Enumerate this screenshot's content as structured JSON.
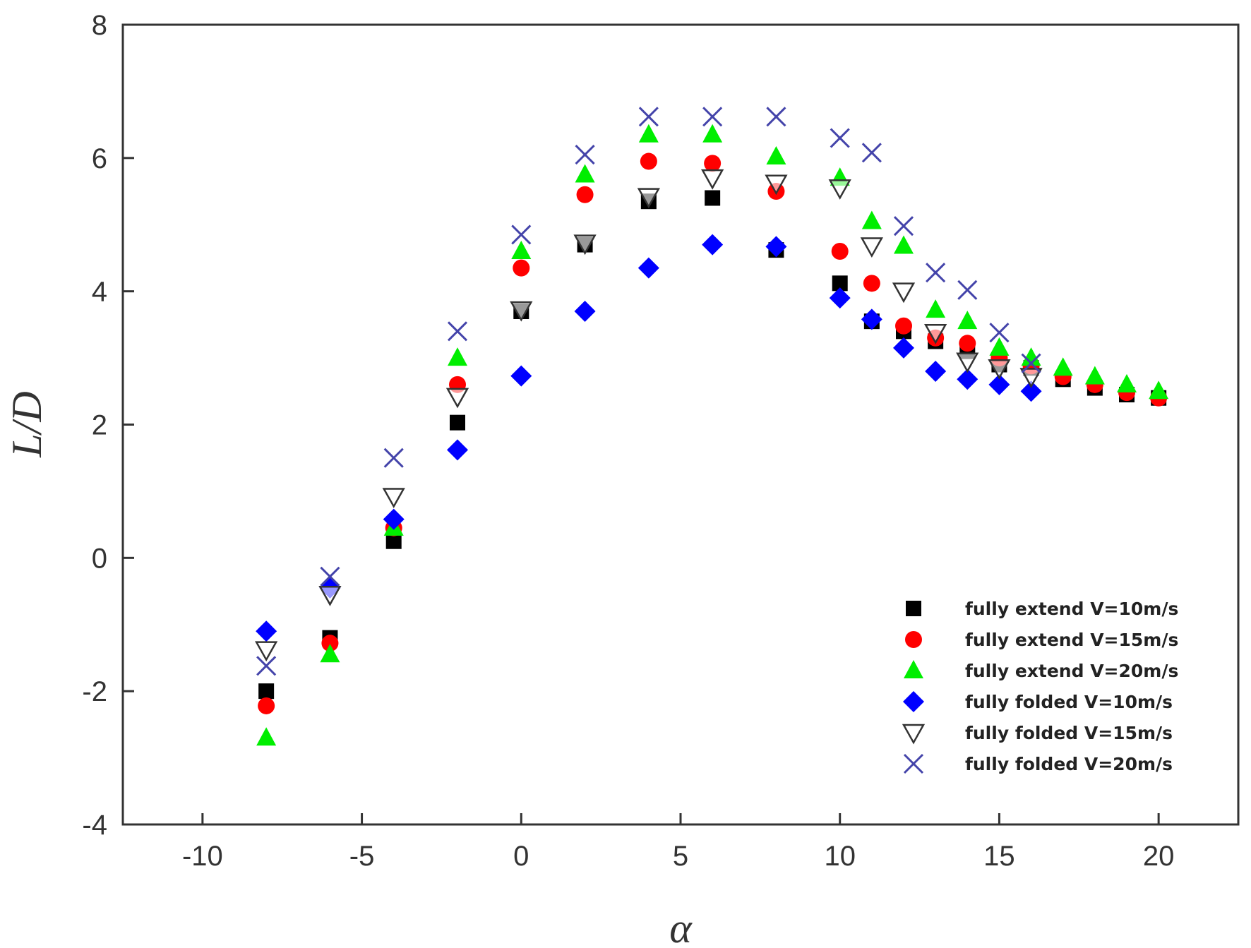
{
  "chart_data": {
    "type": "scatter",
    "title": "",
    "xlabel": "α",
    "ylabel": "L/D",
    "xlim": [
      -12.5,
      22.5
    ],
    "ylim": [
      -4,
      8
    ],
    "xticks": [
      -10,
      -5,
      0,
      5,
      10,
      15,
      20
    ],
    "yticks": [
      -4,
      -2,
      0,
      2,
      4,
      6,
      8
    ],
    "grid": false,
    "legend_position": "bottom-right",
    "series": [
      {
        "name": "fully extend V=10m/s",
        "marker": "square",
        "color": "#000000",
        "points": [
          [
            -8,
            -2.0
          ],
          [
            -6,
            -1.2
          ],
          [
            -4,
            0.25
          ],
          [
            -2,
            2.03
          ],
          [
            0,
            3.7
          ],
          [
            2,
            4.7
          ],
          [
            4,
            5.35
          ],
          [
            6,
            5.4
          ],
          [
            8,
            4.62
          ],
          [
            10,
            4.12
          ],
          [
            11,
            3.55
          ],
          [
            12,
            3.4
          ],
          [
            13,
            3.25
          ],
          [
            14,
            3.1
          ],
          [
            15,
            2.9
          ],
          [
            16,
            2.85
          ],
          [
            17,
            2.68
          ],
          [
            18,
            2.55
          ],
          [
            19,
            2.45
          ],
          [
            20,
            2.4
          ]
        ]
      },
      {
        "name": "fully extend V=15m/s",
        "marker": "circle",
        "color": "#ff0000",
        "points": [
          [
            -8,
            -2.22
          ],
          [
            -6,
            -1.28
          ],
          [
            -4,
            0.45
          ],
          [
            -2,
            2.6
          ],
          [
            0,
            4.35
          ],
          [
            2,
            5.45
          ],
          [
            4,
            5.95
          ],
          [
            6,
            5.92
          ],
          [
            8,
            5.5
          ],
          [
            10,
            4.6
          ],
          [
            11,
            4.12
          ],
          [
            12,
            3.48
          ],
          [
            13,
            3.3
          ],
          [
            14,
            3.22
          ],
          [
            15,
            3.0
          ],
          [
            16,
            2.88
          ],
          [
            17,
            2.72
          ],
          [
            18,
            2.6
          ],
          [
            19,
            2.48
          ],
          [
            20,
            2.4
          ]
        ]
      },
      {
        "name": "fully extend V=20m/s",
        "marker": "triangle-up",
        "color": "#00ee00",
        "points": [
          [
            -8,
            -2.7
          ],
          [
            -6,
            -1.45
          ],
          [
            -4,
            0.45
          ],
          [
            -2,
            3.0
          ],
          [
            0,
            4.6
          ],
          [
            2,
            5.75
          ],
          [
            4,
            6.35
          ],
          [
            6,
            6.35
          ],
          [
            8,
            6.02
          ],
          [
            10,
            5.7
          ],
          [
            11,
            5.05
          ],
          [
            12,
            4.68
          ],
          [
            13,
            3.72
          ],
          [
            14,
            3.55
          ],
          [
            15,
            3.15
          ],
          [
            16,
            3.0
          ],
          [
            17,
            2.85
          ],
          [
            18,
            2.72
          ],
          [
            19,
            2.6
          ],
          [
            20,
            2.5
          ]
        ]
      },
      {
        "name": "fully folded V=10m/s",
        "marker": "diamond",
        "color": "#0000ff",
        "points": [
          [
            -8,
            -1.1
          ],
          [
            -6,
            -0.45
          ],
          [
            -4,
            0.58
          ],
          [
            -2,
            1.62
          ],
          [
            0,
            2.73
          ],
          [
            2,
            3.7
          ],
          [
            4,
            4.35
          ],
          [
            6,
            4.7
          ],
          [
            8,
            4.67
          ],
          [
            10,
            3.9
          ],
          [
            11,
            3.58
          ],
          [
            12,
            3.15
          ],
          [
            13,
            2.8
          ],
          [
            14,
            2.68
          ],
          [
            15,
            2.6
          ],
          [
            16,
            2.5
          ]
        ]
      },
      {
        "name": "fully folded V=15m/s",
        "marker": "triangle-down-open",
        "color": "#333333",
        "points": [
          [
            -8,
            -1.38
          ],
          [
            -6,
            -0.55
          ],
          [
            -4,
            0.92
          ],
          [
            -2,
            2.42
          ],
          [
            0,
            3.72
          ],
          [
            2,
            4.72
          ],
          [
            4,
            5.42
          ],
          [
            6,
            5.7
          ],
          [
            8,
            5.62
          ],
          [
            10,
            5.55
          ],
          [
            11,
            4.68
          ],
          [
            12,
            4.0
          ],
          [
            13,
            3.38
          ],
          [
            14,
            2.95
          ],
          [
            15,
            2.85
          ],
          [
            16,
            2.72
          ]
        ]
      },
      {
        "name": "fully folded V=20m/s",
        "marker": "x",
        "color": "#4444aa",
        "points": [
          [
            -8,
            -1.62
          ],
          [
            -6,
            -0.28
          ],
          [
            -4,
            1.5
          ],
          [
            -2,
            3.4
          ],
          [
            0,
            4.85
          ],
          [
            2,
            6.05
          ],
          [
            4,
            6.62
          ],
          [
            6,
            6.62
          ],
          [
            8,
            6.62
          ],
          [
            10,
            6.3
          ],
          [
            11,
            6.08
          ],
          [
            12,
            4.98
          ],
          [
            13,
            4.28
          ],
          [
            14,
            4.02
          ],
          [
            15,
            3.38
          ],
          [
            16,
            2.92
          ]
        ]
      }
    ]
  }
}
